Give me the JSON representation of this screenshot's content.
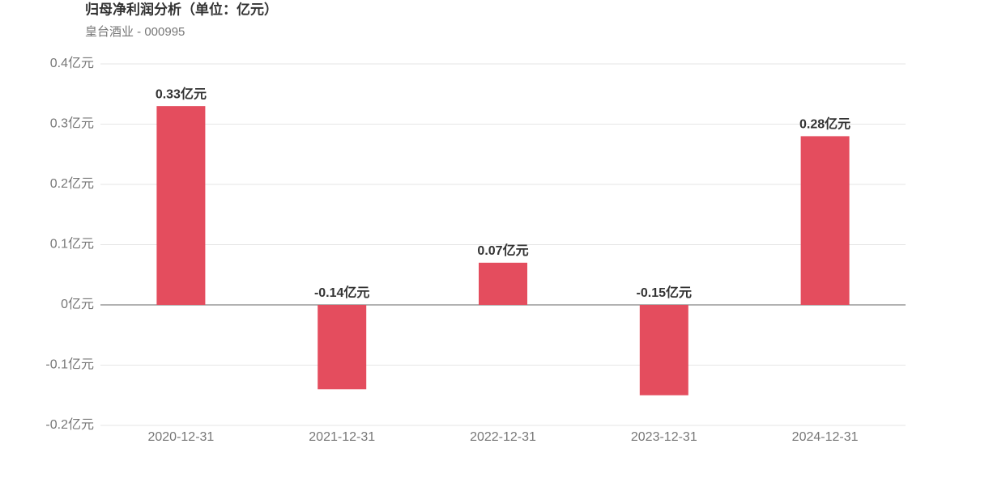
{
  "chart_data": {
    "type": "bar",
    "title": "归母净利润分析（单位：亿元）",
    "subtitle": "皇台酒业 - 000995",
    "categories": [
      "2020-12-31",
      "2021-12-31",
      "2022-12-31",
      "2023-12-31",
      "2024-12-31"
    ],
    "values": [
      0.33,
      -0.14,
      0.07,
      -0.15,
      0.28
    ],
    "value_labels": [
      "0.33亿元",
      "-0.14亿元",
      "0.07亿元",
      "-0.15亿元",
      "0.28亿元"
    ],
    "color": "#e44d5e",
    "ylim": [
      -0.2,
      0.4
    ],
    "yticks": [
      {
        "value": -0.2,
        "label": "-0.2亿元"
      },
      {
        "value": -0.1,
        "label": "-0.1亿元"
      },
      {
        "value": 0,
        "label": "0亿元"
      },
      {
        "value": 0.1,
        "label": "0.1亿元"
      },
      {
        "value": 0.2,
        "label": "0.2亿元"
      },
      {
        "value": 0.3,
        "label": "0.3亿元"
      },
      {
        "value": 0.4,
        "label": "0.4亿元"
      }
    ],
    "grid": true
  }
}
